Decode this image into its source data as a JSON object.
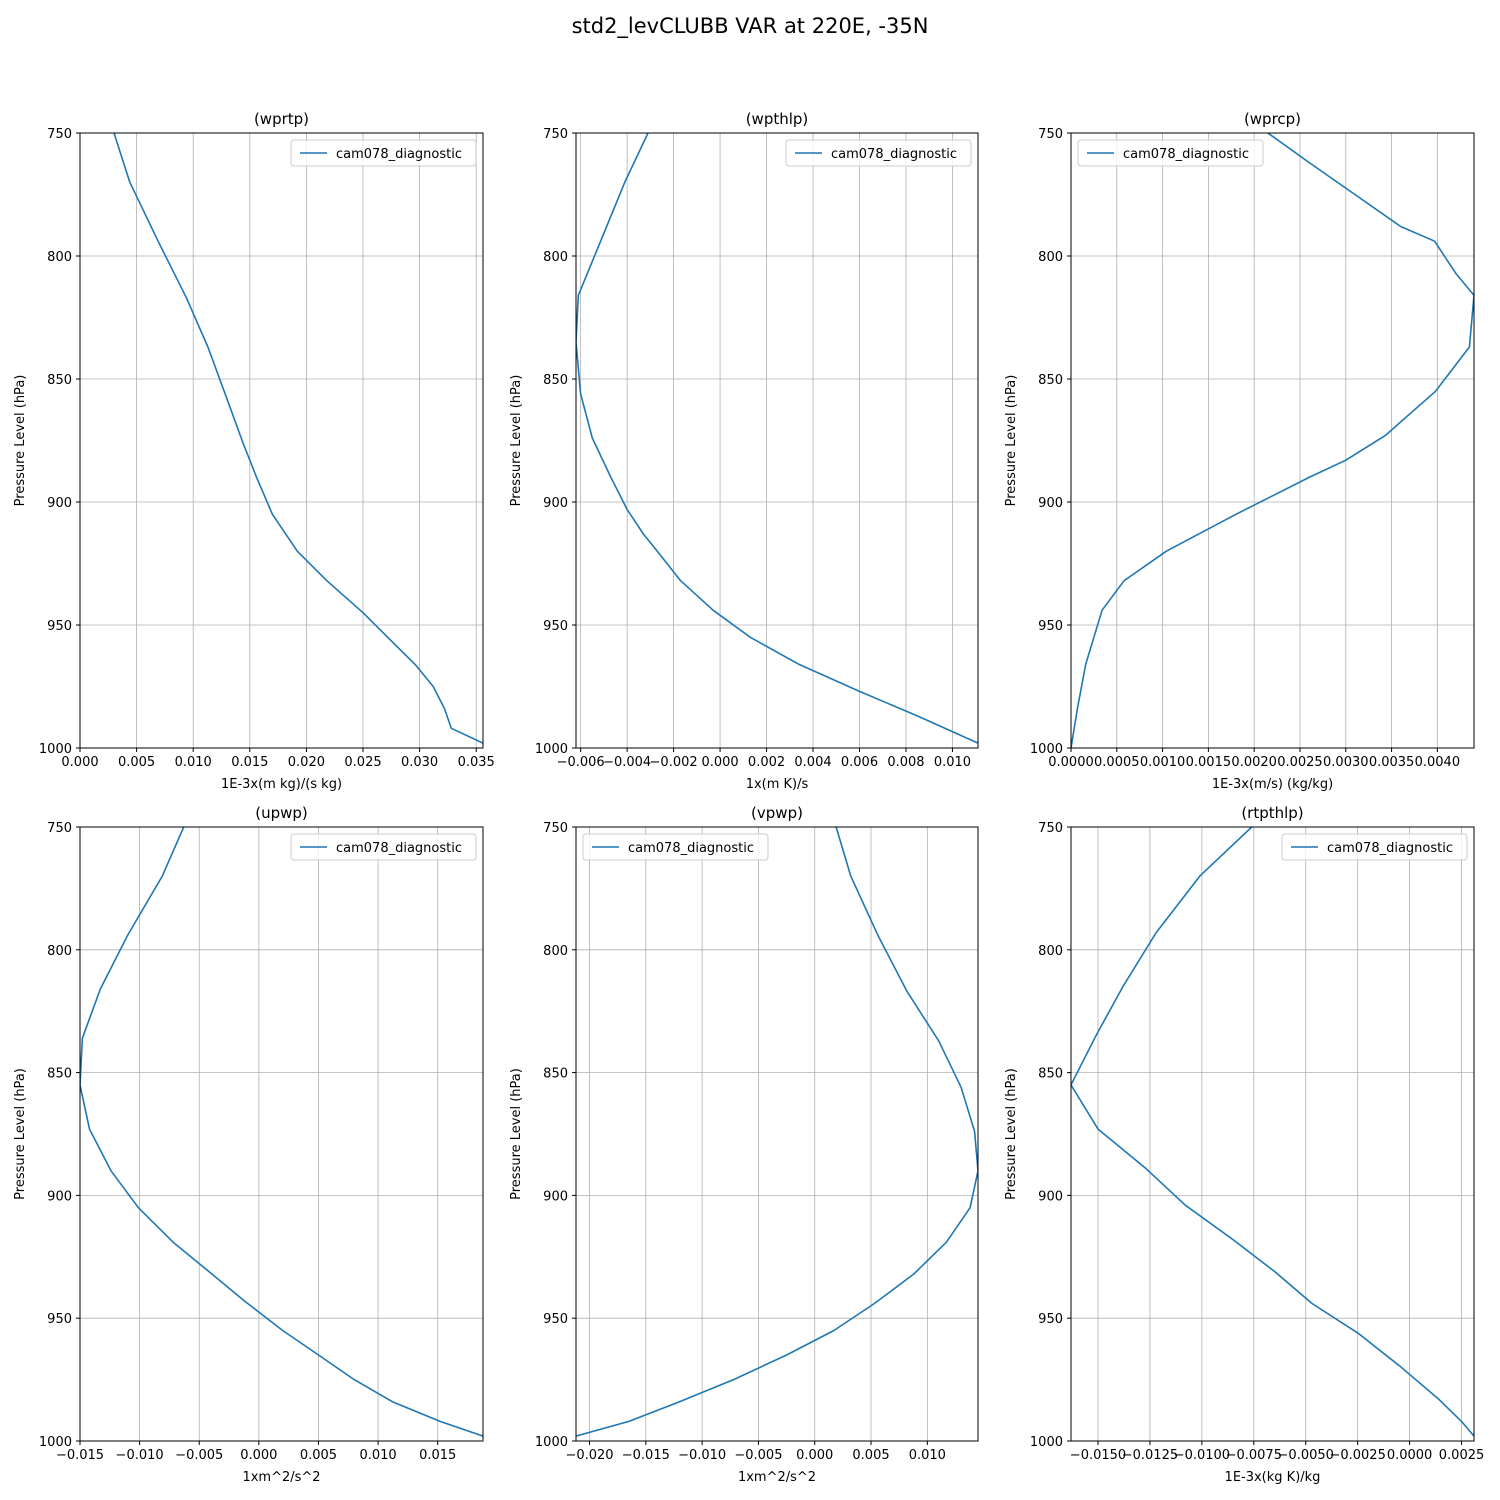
{
  "title": "std2_levCLUBB VAR at 220E, -35N",
  "colors": {
    "series": "#1f77b4",
    "grid": "#b0b0b0",
    "axis": "#000000"
  },
  "chart_data": [
    {
      "type": "line",
      "title": "(wprtp)",
      "xlabel": "1E-3x(m kg)/(s kg)",
      "ylabel": "Pressure Level (hPa)",
      "xlim": [
        0,
        0.0356
      ],
      "ylim": [
        1000,
        750
      ],
      "xticks": [
        0,
        0.005,
        0.01,
        0.015,
        0.02,
        0.025,
        0.03,
        0.035
      ],
      "xtick_labels": [
        "0.000",
        "0.005",
        "0.010",
        "0.015",
        "0.020",
        "0.025",
        "0.030",
        "0.035"
      ],
      "yticks": [
        750,
        800,
        850,
        900,
        950,
        1000
      ],
      "ytick_labels": [
        "750",
        "800",
        "850",
        "900",
        "950",
        "1000"
      ],
      "grid": true,
      "legend": {
        "position": "top-right",
        "entries": [
          "cam078_diagnostic"
        ]
      },
      "series": [
        {
          "name": "cam078_diagnostic",
          "x": [
            0.003,
            0.0044,
            0.0069,
            0.0094,
            0.0113,
            0.0129,
            0.0144,
            0.0156,
            0.017,
            0.0192,
            0.0218,
            0.025,
            0.0274,
            0.0296,
            0.0312,
            0.0322,
            0.0328,
            0.0356
          ],
          "y": [
            750,
            770,
            794,
            817,
            837,
            857,
            876,
            890,
            905,
            920,
            932,
            945,
            956,
            966,
            975,
            984,
            992,
            998
          ]
        }
      ]
    },
    {
      "type": "line",
      "title": "(wpthlp)",
      "xlabel": "1x(m K)/s",
      "ylabel": "Pressure Level (hPa)",
      "xlim": [
        -0.0062,
        0.0111
      ],
      "ylim": [
        1000,
        750
      ],
      "xticks": [
        -0.006,
        -0.004,
        -0.002,
        0,
        0.002,
        0.004,
        0.006,
        0.008,
        0.01
      ],
      "xtick_labels": [
        "−0.006",
        "−0.004",
        "−0.002",
        "0.000",
        "0.002",
        "0.004",
        "0.006",
        "0.008",
        "0.010"
      ],
      "yticks": [
        750,
        800,
        850,
        900,
        950,
        1000
      ],
      "ytick_labels": [
        "750",
        "800",
        "850",
        "900",
        "950",
        "1000"
      ],
      "grid": true,
      "legend": {
        "position": "top-right",
        "entries": [
          "cam078_diagnostic"
        ]
      },
      "series": [
        {
          "name": "cam078_diagnostic",
          "x": [
            -0.0031,
            -0.0041,
            -0.0051,
            -0.0061,
            -0.0062,
            -0.006,
            -0.0055,
            -0.0047,
            -0.004,
            -0.0033,
            -0.0027,
            -0.0017,
            -0.0003,
            0.0013,
            0.0034,
            0.006,
            0.0085,
            0.0111
          ],
          "y": [
            750,
            770,
            793,
            816,
            835,
            856,
            874,
            890,
            903,
            913,
            920,
            932,
            944,
            955,
            966,
            977,
            987,
            998
          ]
        }
      ]
    },
    {
      "type": "line",
      "title": "(wprcp)",
      "xlabel": "1E-3x(m/s) (kg/kg)",
      "ylabel": "Pressure Level (hPa)",
      "xlim": [
        0,
        0.0044
      ],
      "ylim": [
        1000,
        750
      ],
      "xticks": [
        0,
        0.0005,
        0.001,
        0.0015,
        0.002,
        0.0025,
        0.003,
        0.0035,
        0.004
      ],
      "xtick_labels": [
        "0.0000",
        "0.0005",
        "0.0010",
        "0.0015",
        "0.0020",
        "0.0025",
        "0.0030",
        "0.0035",
        "0.0040"
      ],
      "yticks": [
        750,
        800,
        850,
        900,
        950,
        1000
      ],
      "ytick_labels": [
        "750",
        "800",
        "850",
        "900",
        "950",
        "1000"
      ],
      "grid": true,
      "legend": {
        "position": "top-left",
        "entries": [
          "cam078_diagnostic"
        ]
      },
      "series": [
        {
          "name": "cam078_diagnostic",
          "x": [
            0.00215,
            0.0026,
            0.0031,
            0.0036,
            0.00397,
            0.0042,
            0.0044,
            0.00435,
            0.00398,
            0.00343,
            0.003,
            0.0026,
            0.0018,
            0.00104,
            0.00058,
            0.00034,
            0.00025,
            0.00016,
            7e-05,
            0
          ],
          "y": [
            750,
            762,
            775,
            788,
            794,
            807,
            816,
            837,
            855,
            873,
            883,
            890,
            905,
            920,
            932,
            944,
            955,
            966,
            984,
            1000
          ]
        }
      ]
    },
    {
      "type": "line",
      "title": "(upwp)",
      "xlabel": "1xm^2/s^2",
      "ylabel": "Pressure Level (hPa)",
      "xlim": [
        -0.015,
        0.0188
      ],
      "ylim": [
        1000,
        750
      ],
      "xticks": [
        -0.015,
        -0.01,
        -0.005,
        0,
        0.005,
        0.01,
        0.015
      ],
      "xtick_labels": [
        "−0.015",
        "−0.010",
        "−0.005",
        "0.000",
        "0.005",
        "0.010",
        "0.015"
      ],
      "yticks": [
        750,
        800,
        850,
        900,
        950,
        1000
      ],
      "ytick_labels": [
        "750",
        "800",
        "850",
        "900",
        "950",
        "1000"
      ],
      "grid": true,
      "legend": {
        "position": "top-right",
        "entries": [
          "cam078_diagnostic"
        ]
      },
      "series": [
        {
          "name": "cam078_diagnostic",
          "x": [
            -0.0063,
            -0.0081,
            -0.011,
            -0.0133,
            -0.0148,
            -0.015,
            -0.0142,
            -0.0124,
            -0.0101,
            -0.0072,
            -0.0042,
            -0.0012,
            0.002,
            0.005,
            0.008,
            0.0112,
            0.0152,
            0.0188
          ],
          "y": [
            750,
            770,
            794,
            816,
            836,
            855,
            873,
            890,
            905,
            919,
            931,
            943,
            955,
            965,
            975,
            984,
            992,
            998
          ]
        }
      ]
    },
    {
      "type": "line",
      "title": "(vpwp)",
      "xlabel": "1xm^2/s^2",
      "ylabel": "Pressure Level (hPa)",
      "xlim": [
        -0.0212,
        0.0145
      ],
      "ylim": [
        1000,
        750
      ],
      "xticks": [
        -0.02,
        -0.015,
        -0.01,
        -0.005,
        0,
        0.005,
        0.01
      ],
      "xtick_labels": [
        "−0.020",
        "−0.015",
        "−0.010",
        "−0.005",
        "0.000",
        "0.005",
        "0.010"
      ],
      "yticks": [
        750,
        800,
        850,
        900,
        950,
        1000
      ],
      "ytick_labels": [
        "750",
        "800",
        "850",
        "900",
        "950",
        "1000"
      ],
      "grid": true,
      "legend": {
        "position": "top-left",
        "entries": [
          "cam078_diagnostic"
        ]
      },
      "series": [
        {
          "name": "cam078_diagnostic",
          "x": [
            0.0019,
            0.0032,
            0.0056,
            0.0082,
            0.011,
            0.013,
            0.0142,
            0.0145,
            0.0138,
            0.0117,
            0.0088,
            0.0053,
            0.0017,
            -0.0025,
            -0.0072,
            -0.012,
            -0.0165,
            -0.0212
          ],
          "y": [
            750,
            770,
            794,
            817,
            837,
            856,
            874,
            890,
            905,
            919,
            932,
            944,
            955,
            965,
            975,
            984,
            992,
            998
          ]
        }
      ]
    },
    {
      "type": "line",
      "title": "(rtpthlp)",
      "xlabel": "1E-3x(kg K)/kg",
      "ylabel": "Pressure Level (hPa)",
      "xlim": [
        -0.0163,
        0.0031
      ],
      "ylim": [
        1000,
        750
      ],
      "xticks": [
        -0.015,
        -0.0125,
        -0.01,
        -0.0075,
        -0.005,
        -0.0025,
        0,
        0.0025
      ],
      "xtick_labels": [
        "−0.0150",
        "−0.0125",
        "−0.0100",
        "−0.0075",
        "−0.0050",
        "−0.0025",
        "0.0000",
        "0.0025"
      ],
      "yticks": [
        750,
        800,
        850,
        900,
        950,
        1000
      ],
      "ytick_labels": [
        "750",
        "800",
        "850",
        "900",
        "950",
        "1000"
      ],
      "grid": true,
      "legend": {
        "position": "top-right",
        "entries": [
          "cam078_diagnostic"
        ]
      },
      "series": [
        {
          "name": "cam078_diagnostic",
          "x": [
            -0.0076,
            -0.0101,
            -0.0122,
            -0.0138,
            -0.0151,
            -0.0163,
            -0.015,
            -0.0127,
            -0.0108,
            -0.0085,
            -0.0065,
            -0.0047,
            -0.0025,
            -0.0004,
            0.0014,
            0.0025,
            0.0031
          ],
          "y": [
            750,
            770,
            793,
            815,
            835,
            855,
            873,
            889,
            904,
            918,
            931,
            944,
            956,
            970,
            983,
            992,
            998
          ]
        }
      ]
    }
  ]
}
